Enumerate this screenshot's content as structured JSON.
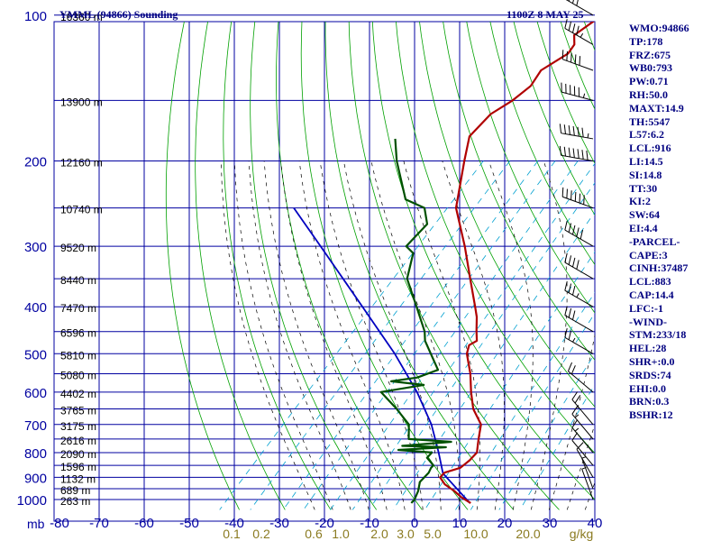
{
  "header": {
    "station_title": "YMML (94866) Sounding",
    "valid_time": "1100Z  8 MAY 25"
  },
  "indices": [
    "WMO:94866",
    "TP:178",
    "FRZ:675",
    "WB0:793",
    "PW:0.71",
    "RH:50.0",
    "MAXT:14.9",
    "TH:5547",
    "L57:6.2",
    "LCL:916",
    "LI:14.5",
    "SI:14.8",
    "TT:30",
    "KI:2",
    "SW:64",
    "EI:4.4",
    "-PARCEL-",
    "CAPE:3",
    "CINH:37487",
    "LCL:883",
    "CAP:14.4",
    "LFC:-1",
    "-WIND-",
    "STM:233/18",
    "HEL:28",
    "SHR+:0.0",
    "SRDS:74",
    "EHI:0.0",
    "BRN:0.3",
    "BSHR:12"
  ],
  "colors": {
    "grid": "#0000a0",
    "dry_adiabat": "#00a000",
    "moist_adiabat": "#000000",
    "mixing_ratio": "#00a0d0",
    "temperature": "#b00000",
    "dewpoint": "#005000",
    "parcel": "#0000c0",
    "mixing_label": "#8a7a20"
  },
  "chart_data": {
    "type": "skew-t",
    "pressure_axis": {
      "unit_label": "mb",
      "ticks": [
        100,
        200,
        300,
        400,
        500,
        600,
        700,
        800,
        900,
        1000
      ],
      "range": [
        1000,
        100
      ],
      "scale": "log"
    },
    "temperature_axis": {
      "ticks": [
        -80,
        -70,
        -60,
        -50,
        -40,
        -30,
        -20,
        -10,
        0,
        10,
        20,
        30,
        40
      ],
      "labels": [
        "-80",
        "-70",
        "-60",
        "-50",
        "-40",
        "-30",
        "-20",
        "-10",
        "0",
        "10",
        "20",
        "30",
        "40"
      ]
    },
    "mixing_ratio_labels": [
      "0.1",
      "0.2",
      "0.6",
      "1.0",
      "2.0",
      "3.0",
      "5.0",
      "10.0",
      "20.0",
      "g/kg"
    ],
    "height_labels": [
      {
        "p": 100,
        "label": "16360 m"
      },
      {
        "p": 150,
        "label": "13900 m"
      },
      {
        "p": 200,
        "label": "12160 m"
      },
      {
        "p": 250,
        "label": "10740 m"
      },
      {
        "p": 300,
        "label": "9520 m"
      },
      {
        "p": 350,
        "label": "8440 m"
      },
      {
        "p": 400,
        "label": "7470 m"
      },
      {
        "p": 450,
        "label": "6596 m"
      },
      {
        "p": 500,
        "label": "5810 m"
      },
      {
        "p": 550,
        "label": "5080 m"
      },
      {
        "p": 600,
        "label": "4402 m"
      },
      {
        "p": 650,
        "label": "3765 m"
      },
      {
        "p": 700,
        "label": "3175 m"
      },
      {
        "p": 750,
        "label": "2616 m"
      },
      {
        "p": 800,
        "label": "2090 m"
      },
      {
        "p": 850,
        "label": "1596 m"
      },
      {
        "p": 900,
        "label": "1132 m"
      },
      {
        "p": 950,
        "label": "689 m"
      },
      {
        "p": 1000,
        "label": "263 m"
      }
    ],
    "temperature_profile": [
      {
        "p": 1017,
        "t": 13.2
      },
      {
        "p": 990,
        "t": 10.0
      },
      {
        "p": 960,
        "t": 7.0
      },
      {
        "p": 930,
        "t": 3.5
      },
      {
        "p": 900,
        "t": 1.0
      },
      {
        "p": 880,
        "t": 1.0
      },
      {
        "p": 860,
        "t": 3.5
      },
      {
        "p": 830,
        "t": 4.0
      },
      {
        "p": 800,
        "t": 4.0
      },
      {
        "p": 770,
        "t": 2.5
      },
      {
        "p": 740,
        "t": 1.0
      },
      {
        "p": 700,
        "t": -1.0
      },
      {
        "p": 650,
        "t": -6.0
      },
      {
        "p": 600,
        "t": -10.0
      },
      {
        "p": 550,
        "t": -14.0
      },
      {
        "p": 500,
        "t": -19.0
      },
      {
        "p": 480,
        "t": -20.3
      },
      {
        "p": 470,
        "t": -19.5
      },
      {
        "p": 450,
        "t": -21.5
      },
      {
        "p": 420,
        "t": -24.5
      },
      {
        "p": 400,
        "t": -27.0
      },
      {
        "p": 350,
        "t": -34.0
      },
      {
        "p": 300,
        "t": -42.0
      },
      {
        "p": 250,
        "t": -52.0
      },
      {
        "p": 200,
        "t": -60.0
      },
      {
        "p": 178,
        "t": -64.0
      },
      {
        "p": 160,
        "t": -64.0
      },
      {
        "p": 150,
        "t": -62.0
      },
      {
        "p": 140,
        "t": -61.0
      },
      {
        "p": 130,
        "t": -62.0
      },
      {
        "p": 120,
        "t": -59.5
      },
      {
        "p": 115,
        "t": -60.0
      },
      {
        "p": 110,
        "t": -62.0
      },
      {
        "p": 100,
        "t": -60.0
      }
    ],
    "dewpoint_profile": [
      {
        "p": 1017,
        "t": 0.0
      },
      {
        "p": 1000,
        "t": 0.0
      },
      {
        "p": 960,
        "t": -1.0
      },
      {
        "p": 920,
        "t": -2.5
      },
      {
        "p": 880,
        "t": -2.5
      },
      {
        "p": 860,
        "t": -3.0
      },
      {
        "p": 850,
        "t": -3.0
      },
      {
        "p": 820,
        "t": -6.0
      },
      {
        "p": 800,
        "t": -6.0
      },
      {
        "p": 790,
        "t": -14.0
      },
      {
        "p": 780,
        "t": -4.0
      },
      {
        "p": 775,
        "t": -14.0
      },
      {
        "p": 760,
        "t": -4.0
      },
      {
        "p": 750,
        "t": -14.0
      },
      {
        "p": 700,
        "t": -17.0
      },
      {
        "p": 650,
        "t": -23.0
      },
      {
        "p": 600,
        "t": -30.0
      },
      {
        "p": 580,
        "t": -22.0
      },
      {
        "p": 570,
        "t": -30.0
      },
      {
        "p": 560,
        "t": -25.0
      },
      {
        "p": 540,
        "t": -22.0
      },
      {
        "p": 500,
        "t": -27.0
      },
      {
        "p": 470,
        "t": -31.0
      },
      {
        "p": 450,
        "t": -33.0
      },
      {
        "p": 400,
        "t": -40.0
      },
      {
        "p": 350,
        "t": -48.0
      },
      {
        "p": 310,
        "t": -52.0
      },
      {
        "p": 300,
        "t": -55.0
      },
      {
        "p": 270,
        "t": -55.0
      },
      {
        "p": 250,
        "t": -59.0
      },
      {
        "p": 240,
        "t": -65.0
      },
      {
        "p": 200,
        "t": -75.0
      },
      {
        "p": 180,
        "t": -80.0
      }
    ],
    "parcel_profile": [
      {
        "p": 1017,
        "t": 13.0
      },
      {
        "p": 883,
        "t": 0.8
      },
      {
        "p": 800,
        "t": -4.5
      },
      {
        "p": 700,
        "t": -12.0
      },
      {
        "p": 600,
        "t": -22.0
      },
      {
        "p": 500,
        "t": -35.0
      },
      {
        "p": 400,
        "t": -52.0
      },
      {
        "p": 300,
        "t": -74.0
      },
      {
        "p": 250,
        "t": -88.0
      }
    ],
    "grid": true
  },
  "wind_profile": [
    {
      "p": 100,
      "dir": 300,
      "spd": 40
    },
    {
      "p": 115,
      "dir": 300,
      "spd": 45
    },
    {
      "p": 130,
      "dir": 290,
      "spd": 50
    },
    {
      "p": 150,
      "dir": 285,
      "spd": 55
    },
    {
      "p": 180,
      "dir": 280,
      "spd": 65
    },
    {
      "p": 200,
      "dir": 280,
      "spd": 70
    },
    {
      "p": 250,
      "dir": 290,
      "spd": 60
    },
    {
      "p": 300,
      "dir": 300,
      "spd": 50
    },
    {
      "p": 350,
      "dir": 300,
      "spd": 40
    },
    {
      "p": 400,
      "dir": 300,
      "spd": 35
    },
    {
      "p": 450,
      "dir": 300,
      "spd": 30
    },
    {
      "p": 500,
      "dir": 300,
      "spd": 25
    },
    {
      "p": 600,
      "dir": 310,
      "spd": 20
    },
    {
      "p": 700,
      "dir": 320,
      "spd": 20
    },
    {
      "p": 750,
      "dir": 320,
      "spd": 18
    },
    {
      "p": 800,
      "dir": 320,
      "spd": 15
    },
    {
      "p": 850,
      "dir": 320,
      "spd": 12
    },
    {
      "p": 900,
      "dir": 330,
      "spd": 10
    },
    {
      "p": 950,
      "dir": 340,
      "spd": 8
    },
    {
      "p": 1000,
      "dir": 340,
      "spd": 5
    }
  ]
}
